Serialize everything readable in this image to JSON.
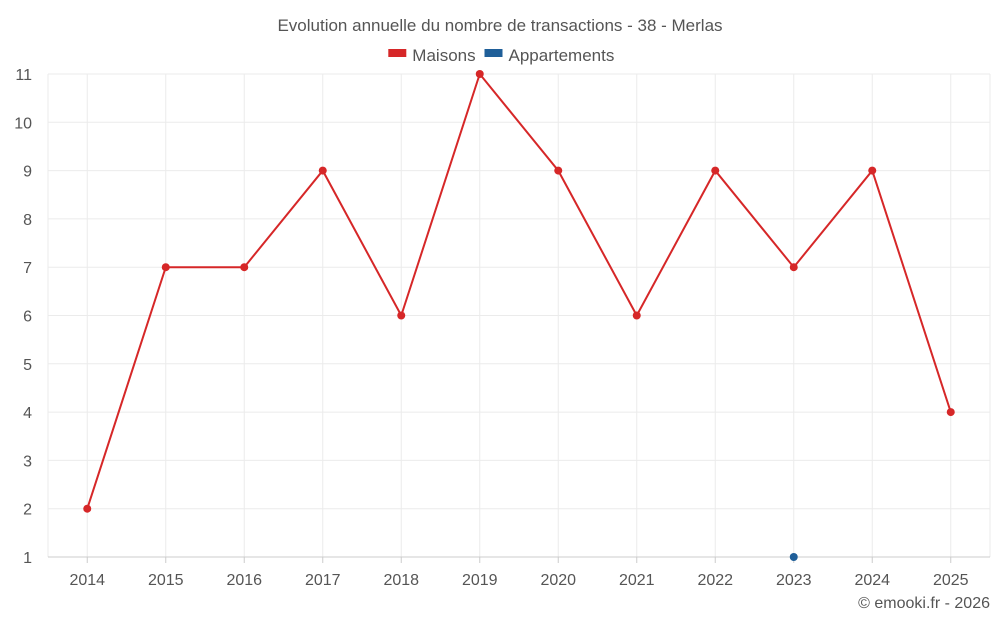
{
  "chart_data": {
    "type": "line",
    "title": "Evolution annuelle du nombre de transactions - 38 - Merlas",
    "categories": [
      "2014",
      "2015",
      "2016",
      "2017",
      "2018",
      "2019",
      "2020",
      "2021",
      "2022",
      "2023",
      "2024",
      "2025"
    ],
    "series": [
      {
        "name": "Maisons",
        "color": "#d62728",
        "values": [
          2,
          7,
          7,
          9,
          6,
          11,
          9,
          6,
          9,
          7,
          9,
          4
        ]
      },
      {
        "name": "Appartements",
        "color": "#1f5f99",
        "values": [
          null,
          null,
          null,
          null,
          null,
          null,
          null,
          null,
          null,
          1,
          null,
          null
        ]
      }
    ],
    "yticks": [
      1,
      2,
      3,
      4,
      5,
      6,
      7,
      8,
      9,
      10,
      11
    ],
    "ylim": [
      1,
      11
    ],
    "xlabel": "",
    "ylabel": "",
    "grid": true,
    "legend_position": "top-center"
  },
  "credit": "© emooki.fr - 2026"
}
